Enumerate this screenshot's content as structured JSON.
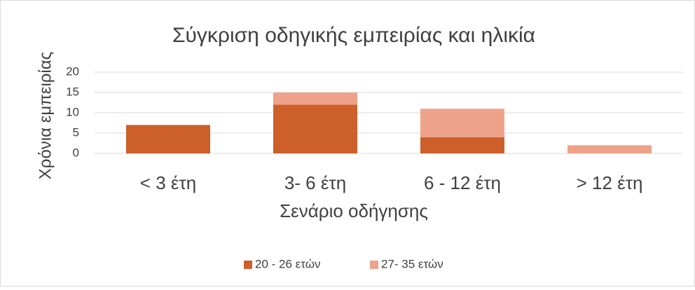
{
  "chart_data": {
    "type": "stacked_bar",
    "title": "Σύγκριση οδηγικής εμπειρίας και ηλικία",
    "y_label": "Χρόνια εμπειρίας",
    "x_label": "Σενάριο οδήγησης",
    "categories": [
      "< 3 έτη",
      "3- 6 έτη",
      "6 - 12 έτη",
      "> 12 έτη"
    ],
    "series": [
      {
        "name": "20 - 26 ετών",
        "color": "#cc5f2a",
        "values": [
          7,
          12,
          4,
          0
        ]
      },
      {
        "name": "27- 35 ετών",
        "color": "#eea28a",
        "values": [
          0,
          3,
          7,
          2
        ]
      }
    ],
    "ylim": [
      0,
      20
    ],
    "yticks": [
      0,
      5,
      10,
      15,
      20
    ],
    "grid": true,
    "legend": "bottom"
  }
}
